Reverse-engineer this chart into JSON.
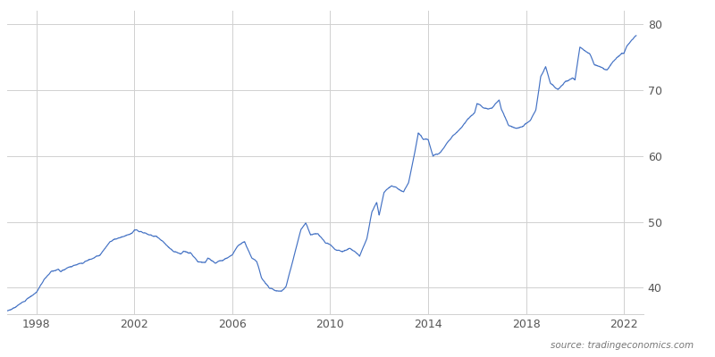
{
  "title": "",
  "source_text": "source: tradingeconomics.com",
  "line_color": "#4472C4",
  "background_color": "#ffffff",
  "grid_color": "#d0d0d0",
  "tick_color": "#555555",
  "ylim": [
    36,
    82
  ],
  "yticks": [
    40,
    50,
    60,
    70,
    80
  ],
  "xtick_labels": [
    "1998",
    "2002",
    "2006",
    "2010",
    "2014",
    "2018",
    "2022"
  ],
  "xtick_years": [
    1998,
    2002,
    2006,
    2010,
    2014,
    2018,
    2022
  ],
  "xlim_left": 1996.8,
  "xlim_right": 2022.8,
  "anchors_x": [
    1996.8,
    1997.0,
    1997.2,
    1997.5,
    1997.8,
    1998.0,
    1998.3,
    1998.6,
    1998.9,
    1999.0,
    1999.3,
    1999.6,
    1999.9,
    2000.0,
    2000.3,
    2000.6,
    2000.9,
    2001.0,
    2001.3,
    2001.6,
    2001.9,
    2002.0,
    2002.3,
    2002.6,
    2002.9,
    2003.0,
    2003.3,
    2003.6,
    2003.9,
    2004.0,
    2004.3,
    2004.6,
    2004.9,
    2005.0,
    2005.3,
    2005.6,
    2005.9,
    2006.0,
    2006.2,
    2006.5,
    2006.8,
    2007.0,
    2007.2,
    2007.5,
    2007.8,
    2008.0,
    2008.2,
    2008.5,
    2008.8,
    2009.0,
    2009.2,
    2009.5,
    2009.8,
    2010.0,
    2010.2,
    2010.5,
    2010.8,
    2011.0,
    2011.2,
    2011.5,
    2011.7,
    2011.9,
    2012.0,
    2012.2,
    2012.5,
    2012.8,
    2013.0,
    2013.2,
    2013.4,
    2013.6,
    2013.8,
    2014.0,
    2014.2,
    2014.5,
    2014.8,
    2015.0,
    2015.3,
    2015.6,
    2015.9,
    2016.0,
    2016.3,
    2016.6,
    2016.9,
    2017.0,
    2017.3,
    2017.6,
    2017.9,
    2018.0,
    2018.2,
    2018.4,
    2018.6,
    2018.8,
    2019.0,
    2019.3,
    2019.6,
    2019.9,
    2020.0,
    2020.2,
    2020.4,
    2020.6,
    2020.8,
    2021.0,
    2021.3,
    2021.6,
    2021.9,
    2022.0,
    2022.1,
    2022.3,
    2022.5
  ],
  "anchors_y": [
    36.5,
    36.8,
    37.2,
    38.0,
    38.8,
    39.3,
    41.2,
    42.5,
    42.8,
    42.5,
    43.1,
    43.5,
    43.7,
    44.0,
    44.5,
    45.0,
    46.5,
    47.0,
    47.5,
    47.8,
    48.2,
    48.8,
    48.5,
    48.0,
    47.8,
    47.5,
    46.5,
    45.5,
    45.2,
    45.5,
    45.2,
    44.0,
    43.8,
    44.5,
    43.8,
    44.2,
    44.8,
    45.0,
    46.3,
    47.0,
    44.5,
    44.0,
    41.5,
    40.0,
    39.5,
    39.5,
    40.2,
    44.5,
    48.8,
    49.8,
    48.0,
    48.2,
    46.8,
    46.5,
    45.8,
    45.5,
    46.0,
    45.5,
    44.8,
    47.5,
    51.5,
    53.0,
    51.0,
    54.5,
    55.5,
    55.0,
    54.5,
    56.0,
    59.5,
    63.5,
    62.5,
    62.5,
    60.0,
    60.5,
    62.0,
    63.0,
    64.0,
    65.5,
    66.5,
    68.0,
    67.2,
    67.2,
    68.5,
    67.0,
    64.5,
    64.2,
    64.5,
    65.0,
    65.5,
    67.0,
    72.0,
    73.5,
    71.0,
    70.0,
    71.2,
    71.8,
    71.5,
    76.5,
    76.0,
    75.5,
    73.8,
    73.5,
    73.0,
    74.5,
    75.5,
    75.5,
    76.5,
    77.5,
    78.2
  ]
}
